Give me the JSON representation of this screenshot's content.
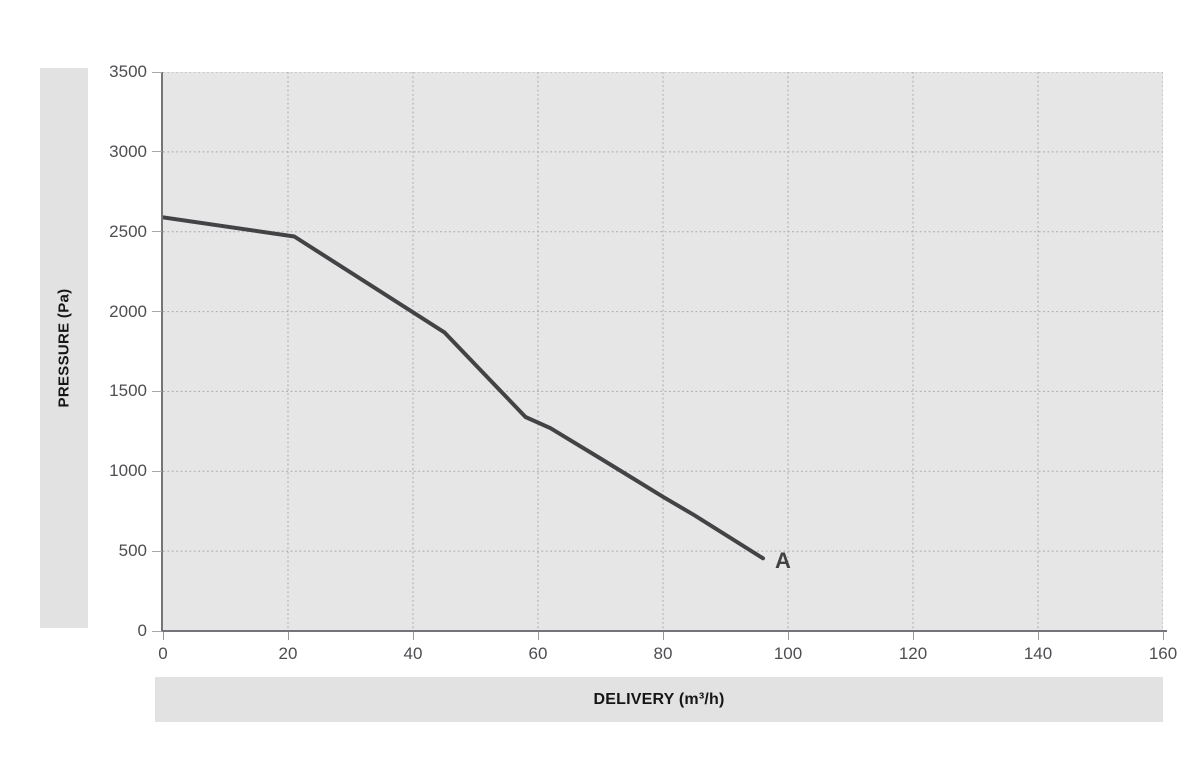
{
  "chart_data": {
    "type": "line",
    "title": "",
    "xlabel": "DELIVERY (m³/h)",
    "ylabel": "PRESSURE (Pa)",
    "xlim": [
      0,
      160
    ],
    "ylim": [
      0,
      3500
    ],
    "xticks": [
      0,
      20,
      40,
      60,
      80,
      100,
      120,
      140,
      160
    ],
    "yticks": [
      0,
      500,
      1000,
      1500,
      2000,
      2500,
      3000,
      3500
    ],
    "grid": "dotted",
    "legend": "none",
    "series": [
      {
        "name": "A",
        "end_label": "A",
        "points": [
          [
            0,
            2590
          ],
          [
            21,
            2470
          ],
          [
            45,
            1870
          ],
          [
            58,
            1340
          ],
          [
            62,
            1270
          ],
          [
            70,
            1080
          ],
          [
            80,
            840
          ],
          [
            85,
            725
          ],
          [
            96,
            455
          ]
        ]
      }
    ],
    "colors": {
      "curve": "#434346",
      "plot_bg": "#e6e6e7",
      "band_bg": "#e2e2e3",
      "grid": "#a8a8aa",
      "axis": "#747578",
      "tick_text": "#4d4e51",
      "title_text": "#161616"
    }
  }
}
